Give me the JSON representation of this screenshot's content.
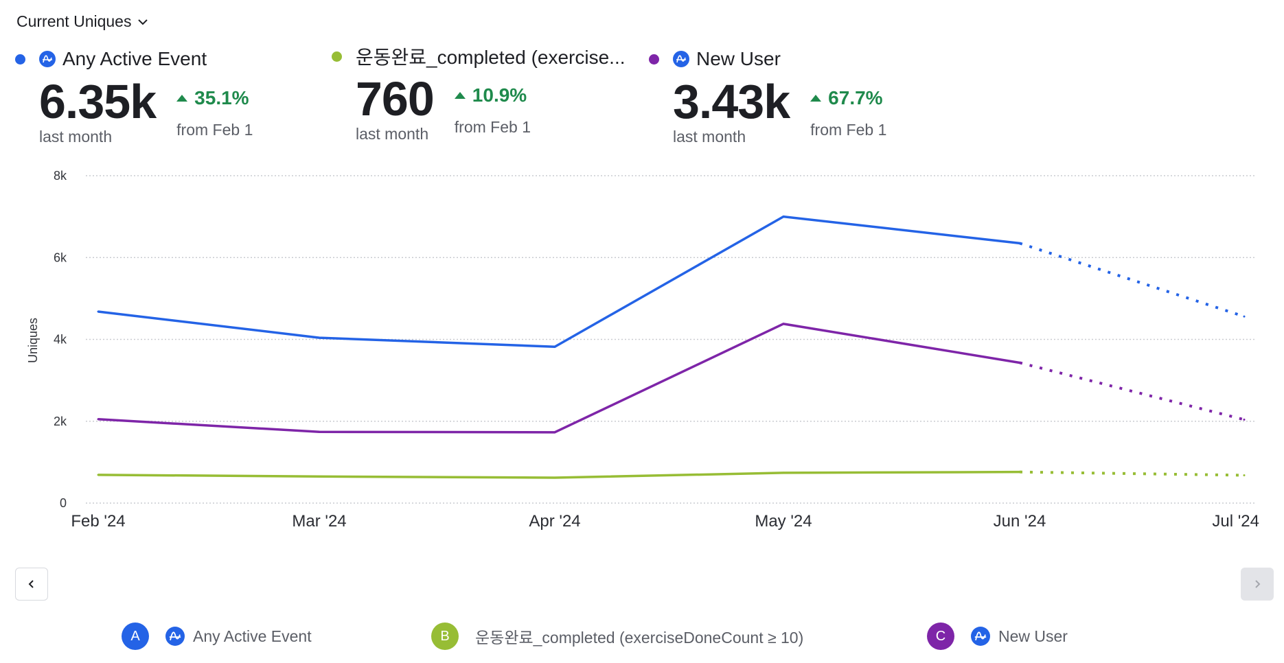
{
  "header": {
    "metric_label": "Current Uniques"
  },
  "summaries": [
    {
      "name": "Any Active Event",
      "color": "#2463e6",
      "has_event_icon": true,
      "value": "6.35k",
      "value_caption": "last month",
      "change": "35.1%",
      "change_direction": "up",
      "change_caption": "from Feb 1"
    },
    {
      "name": "운동완료_completed (exercise...",
      "color": "#97bd35",
      "has_event_icon": false,
      "value": "760",
      "value_caption": "last month",
      "change": "10.9%",
      "change_direction": "up",
      "change_caption": "from Feb 1"
    },
    {
      "name": "New User",
      "color": "#7e25a8",
      "has_event_icon": true,
      "value": "3.43k",
      "value_caption": "last month",
      "change": "67.7%",
      "change_direction": "up",
      "change_caption": "from Feb 1"
    }
  ],
  "colors": {
    "positive_change": "#1f8a4c",
    "gridline": "#c9cbd0"
  },
  "legend": [
    {
      "letter": "A",
      "label": "Any Active Event",
      "color": "#2463e6",
      "has_event_icon": true
    },
    {
      "letter": "B",
      "label": "운동완료_completed (exerciseDoneCount ≥ 10)",
      "color": "#97bd35",
      "has_event_icon": false
    },
    {
      "letter": "C",
      "label": "New User",
      "color": "#7e25a8",
      "has_event_icon": true
    }
  ],
  "chart_data": {
    "type": "line",
    "title": "Current Uniques",
    "xlabel": "",
    "ylabel": "Uniques",
    "categories": [
      "Feb '24",
      "Mar '24",
      "Apr '24",
      "May '24",
      "Jun '24",
      "Jul '24"
    ],
    "ylim": [
      0,
      8000
    ],
    "yticks": [
      0,
      2000,
      4000,
      6000,
      8000
    ],
    "ytick_labels": [
      "0",
      "2k",
      "4k",
      "6k",
      "8k"
    ],
    "grid": true,
    "incomplete_from_index": 4,
    "series": [
      {
        "name": "Any Active Event",
        "color": "#2463e6",
        "values": [
          4680,
          4040,
          3820,
          7000,
          6350,
          4560
        ]
      },
      {
        "name": "운동완료_completed (exerciseDoneCount ≥ 10)",
        "color": "#97bd35",
        "values": [
          690,
          650,
          620,
          740,
          760,
          680
        ]
      },
      {
        "name": "New User",
        "color": "#7e25a8",
        "values": [
          2050,
          1740,
          1730,
          4380,
          3430,
          2040
        ]
      }
    ]
  }
}
